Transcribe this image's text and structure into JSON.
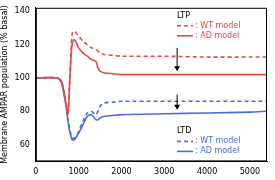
{
  "chart_data": {
    "type": "line",
    "y_label": "Membrane AMPAR population (% basal)",
    "x": [
      0,
      500,
      600,
      700,
      750,
      800,
      850,
      900,
      1000,
      1100,
      1200,
      1300,
      1400,
      1450,
      1500,
      1600,
      1800,
      2000,
      3000,
      4000,
      5000,
      5400
    ],
    "series": [
      {
        "name": ": WT model",
        "group": "LTP",
        "color": "#e34a46",
        "line_style": "dashed",
        "values": [
          100,
          100,
          98,
          85,
          78,
          105,
          127,
          128,
          125,
          122,
          120,
          118,
          117,
          116,
          115,
          114,
          113.5,
          113,
          113,
          112.5,
          112.5,
          112.5
        ]
      },
      {
        "name": ": AD model",
        "group": "LTP",
        "color": "#e34a46",
        "line_style": "solid",
        "values": [
          100,
          100,
          98,
          85,
          78,
          103,
          121,
          123,
          118,
          115,
          113,
          111,
          110,
          106,
          104,
          103,
          102.5,
          102,
          102,
          102,
          102,
          102
        ]
      },
      {
        "name": ": WT model",
        "group": "LTD",
        "color": "#4a6fd6",
        "line_style": "dashed",
        "values": [
          100,
          100,
          97,
          85,
          75,
          68,
          64,
          64,
          68,
          74,
          79,
          80,
          78,
          80,
          83,
          85,
          85.5,
          86,
          86,
          86,
          86,
          86
        ]
      },
      {
        "name": ": AD model",
        "group": "LTD",
        "color": "#4a6fd6",
        "line_style": "solid",
        "values": [
          100,
          100,
          97,
          84,
          74,
          67,
          63,
          63,
          67,
          72,
          77,
          78,
          75,
          75,
          76,
          77,
          77.5,
          78,
          78.5,
          79,
          79.5,
          80
        ]
      }
    ],
    "arrows": [
      {
        "x": 3300,
        "from": 118,
        "to": 104
      },
      {
        "x": 3300,
        "from": 90,
        "to": 81
      }
    ],
    "xlim": [
      0,
      5400
    ],
    "xticks": [
      0,
      1000,
      2000,
      3000,
      4000,
      5000
    ],
    "ylim": [
      50,
      142
    ],
    "yticks": [
      60,
      80,
      100,
      120,
      140
    ],
    "grid": false,
    "legend": "right"
  }
}
